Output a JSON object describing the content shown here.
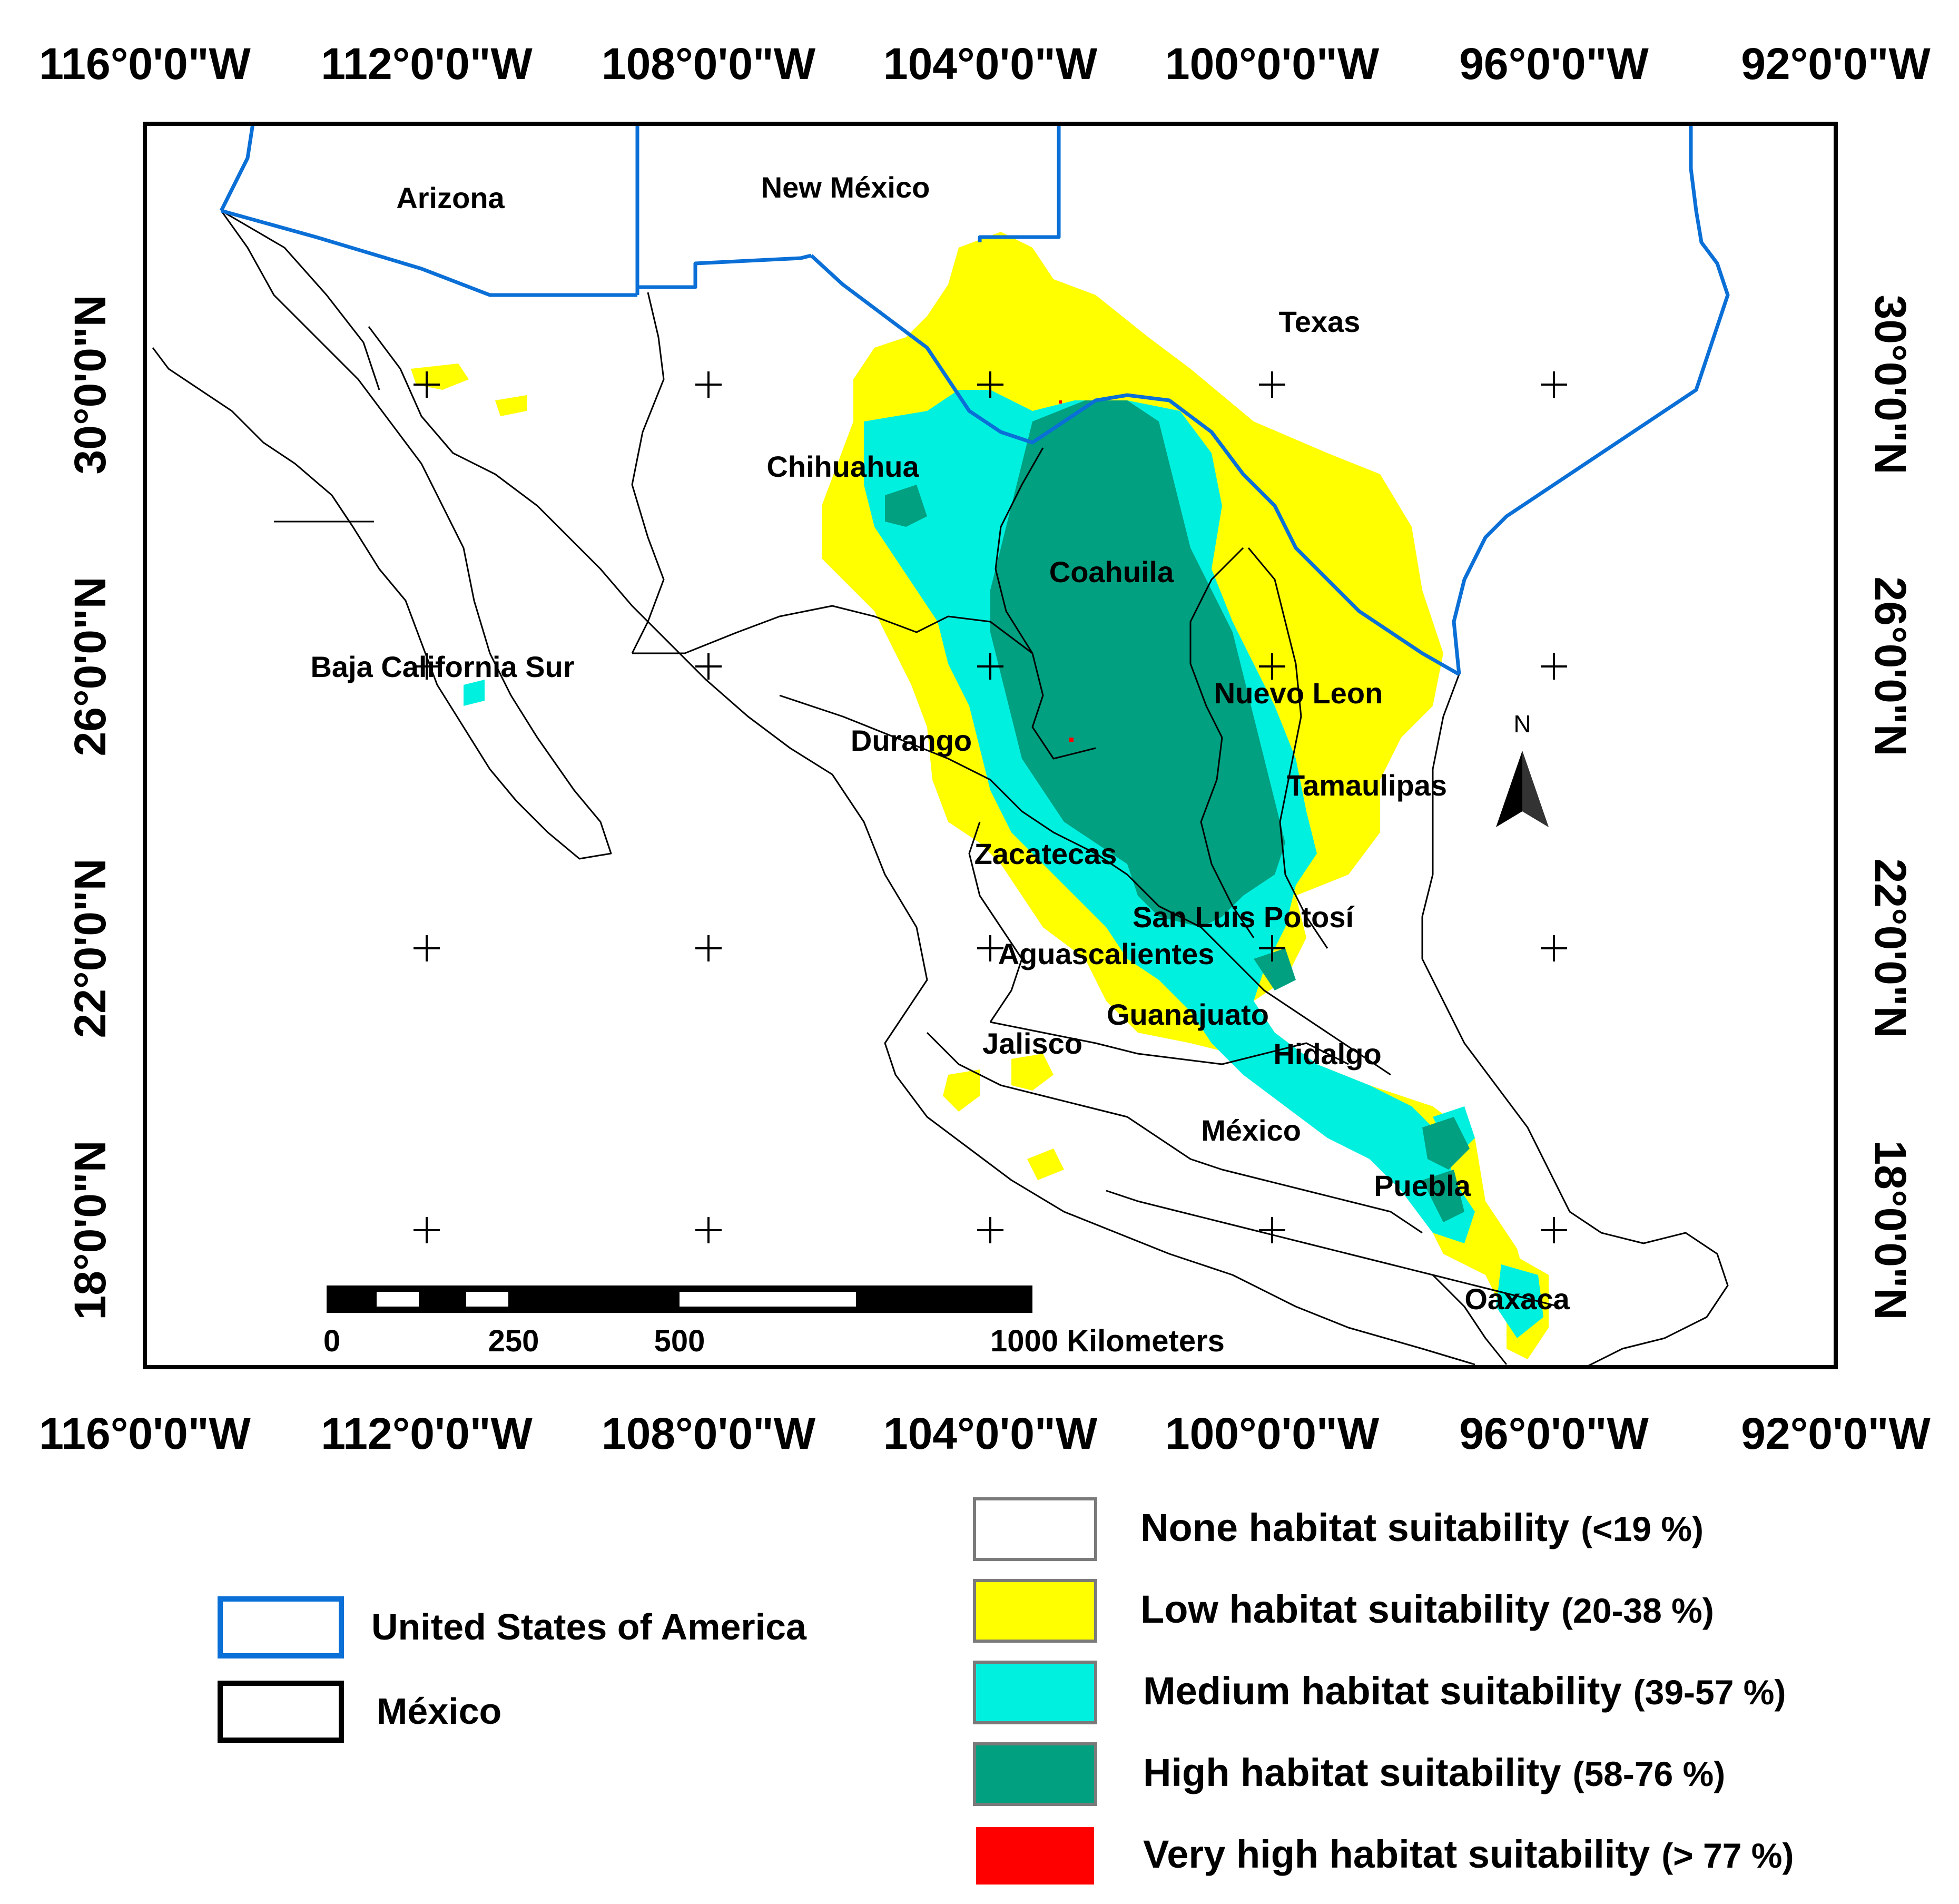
{
  "map": {
    "longitude_labels": [
      "116°0'0\"W",
      "112°0'0\"W",
      "108°0'0\"W",
      "104°0'0\"W",
      "100°0'0\"W",
      "96°0'0\"W",
      "92°0'0\"W"
    ],
    "latitude_labels": [
      "30°0'0\"N",
      "26°0'0\"N",
      "22°0'0\"N",
      "18°0'0\"N"
    ],
    "state_labels": {
      "arizona": "Arizona",
      "new_mexico": "New México",
      "texas": "Texas",
      "chihuahua": "Chihuahua",
      "coahuila": "Coahuila",
      "baja_california_sur": "Baja California Sur",
      "nuevo_leon": "Nuevo Leon",
      "durango": "Durango",
      "tamaulipas": "Tamaulipas",
      "zacatecas": "Zacatecas",
      "san_luis_potosi": "San Luis Potosí",
      "aguascalientes": "Aguascalientes",
      "guanajuato": "Guanajuato",
      "jalisco": "Jalisco",
      "hidalgo": "Hidalgo",
      "mexico": "México",
      "puebla": "Puebla",
      "oaxaca": "Oaxaca"
    },
    "north_arrow_label": "N",
    "scale_bar": {
      "ticks": [
        "0",
        "250",
        "500",
        "1000 Kilometers"
      ]
    }
  },
  "border_legend": [
    {
      "label": "United States of America",
      "color": "#0a6fd6"
    },
    {
      "label": "México",
      "color": "#000000"
    }
  ],
  "suitability_legend": [
    {
      "label": "None habitat suitability",
      "range": "(<19 %)",
      "color": "#ffffff"
    },
    {
      "label": "Low habitat suitability",
      "range": "(20-38 %)",
      "color": "#ffff00"
    },
    {
      "label": "Medium habitat suitability",
      "range": "(39-57 %)",
      "color": "#00f0e0"
    },
    {
      "label": "High habitat suitability",
      "range": "(58-76 %)",
      "color": "#00a080"
    },
    {
      "label": "Very high habitat suitability",
      "range": "(> 77 %)",
      "color": "#ff0000"
    }
  ]
}
